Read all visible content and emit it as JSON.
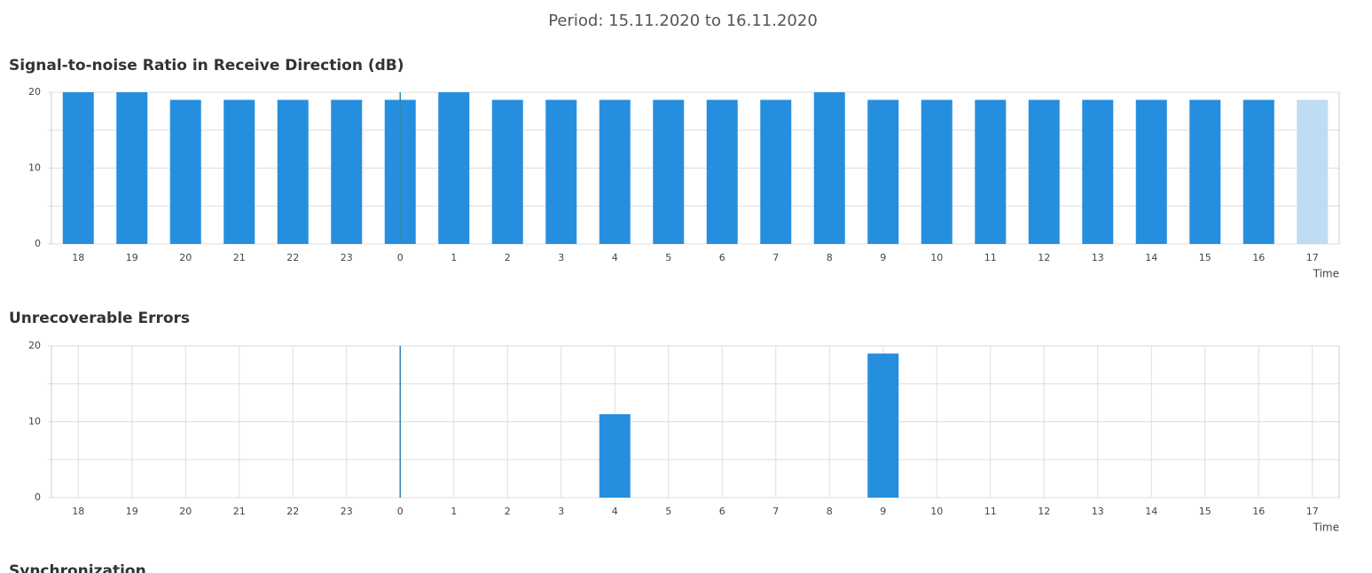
{
  "header": {
    "period": "Period: 15.11.2020 to 16.11.2020"
  },
  "chart_data": [
    {
      "type": "bar",
      "title": "Signal-to-noise Ratio in Receive Direction (dB)",
      "categories": [
        "18",
        "19",
        "20",
        "21",
        "22",
        "23",
        "0",
        "1",
        "2",
        "3",
        "4",
        "5",
        "6",
        "7",
        "8",
        "9",
        "10",
        "11",
        "12",
        "13",
        "14",
        "15",
        "16",
        "17"
      ],
      "values": [
        20,
        20,
        19,
        19,
        19,
        19,
        19,
        20,
        19,
        19,
        19,
        19,
        19,
        19,
        20,
        19,
        19,
        19,
        19,
        19,
        19,
        19,
        19,
        19
      ],
      "colors": [
        "#268ede",
        "#268ede",
        "#268ede",
        "#268ede",
        "#268ede",
        "#268ede",
        "#268ede",
        "#268ede",
        "#268ede",
        "#268ede",
        "#268ede",
        "#268ede",
        "#268ede",
        "#268ede",
        "#268ede",
        "#268ede",
        "#268ede",
        "#268ede",
        "#268ede",
        "#268ede",
        "#268ede",
        "#268ede",
        "#268ede",
        "#bedcf4"
      ],
      "ylim": [
        0,
        20
      ],
      "yticks": [
        0,
        10,
        20
      ],
      "minor_yticks": [
        5,
        15
      ],
      "xlabel": "Time",
      "xgrid": false,
      "divider_index": 6,
      "divider_color": "#2a8ab0"
    },
    {
      "type": "bar",
      "title": "Unrecoverable Errors",
      "categories": [
        "18",
        "19",
        "20",
        "21",
        "22",
        "23",
        "0",
        "1",
        "2",
        "3",
        "4",
        "5",
        "6",
        "7",
        "8",
        "9",
        "10",
        "11",
        "12",
        "13",
        "14",
        "15",
        "16",
        "17"
      ],
      "values": [
        0,
        0,
        0,
        0,
        0,
        0,
        0,
        0,
        0,
        0,
        11,
        0,
        0,
        0,
        0,
        19,
        0,
        0,
        0,
        0,
        0,
        0,
        0,
        0
      ],
      "colors": [
        "#268ede",
        "#268ede",
        "#268ede",
        "#268ede",
        "#268ede",
        "#268ede",
        "#268ede",
        "#268ede",
        "#268ede",
        "#268ede",
        "#268ede",
        "#268ede",
        "#268ede",
        "#268ede",
        "#268ede",
        "#268ede",
        "#268ede",
        "#268ede",
        "#268ede",
        "#268ede",
        "#268ede",
        "#268ede",
        "#268ede",
        "#268ede"
      ],
      "ylim": [
        0,
        20
      ],
      "yticks": [
        0,
        10,
        20
      ],
      "minor_yticks": [
        5,
        15
      ],
      "xlabel": "Time",
      "xgrid": true,
      "divider_index": 6,
      "divider_color": "#2a8ab0"
    }
  ],
  "next_section": {
    "title": "Synchronization"
  }
}
